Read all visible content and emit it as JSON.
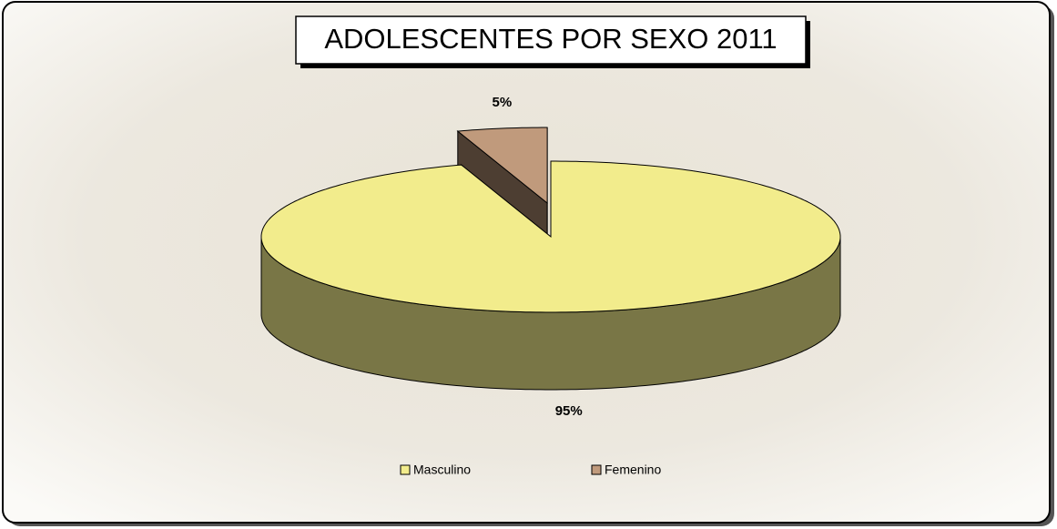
{
  "chart_data": {
    "type": "pie",
    "title": "ADOLESCENTES  POR SEXO 2011",
    "categories": [
      "Masculino",
      "Femenino"
    ],
    "values": [
      95,
      5
    ],
    "value_labels": [
      "95%",
      "5%"
    ],
    "colors": [
      "#f2ec8c",
      "#c09a7c"
    ],
    "legend": "bottom"
  }
}
